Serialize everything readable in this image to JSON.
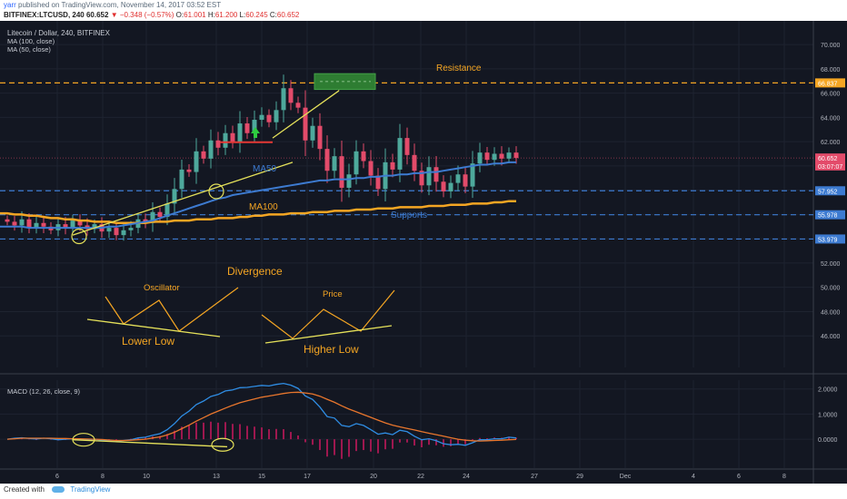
{
  "header": {
    "author": "yarr",
    "published_text": "published on TradingView.com, November 14, 2017 03:52 EST",
    "symbol": "BITFINEX:LTCUSD, 240",
    "last": "60.652",
    "change": "▼ −0.348 (−0.57%)",
    "o_label": "O:",
    "o": "61.001",
    "h_label": "H:",
    "h": "61.200",
    "l_label": "L:",
    "l": "60.245",
    "c_label": "C:",
    "c": "60.652"
  },
  "legend": {
    "title": "Litecoin / Dollar, 240, BITFINEX",
    "ma100": "MA (100, close)",
    "ma50": "MA (50, close)"
  },
  "footer": {
    "created_with": "Created with",
    "brand": "TradingView"
  },
  "colors": {
    "background": "#131722",
    "up": "#4ea99c",
    "down": "#e34b6a",
    "ma50": "#3d7bd1",
    "ma100": "#f5a623",
    "annotation": "#f5a623",
    "trend": "#e5e15a",
    "support": "#3d7bd1",
    "resistance": "#f5a623"
  },
  "annotations": {
    "resistance": "Resistance",
    "supports": "Supports",
    "ma50": "MA50",
    "ma100": "MA100",
    "divergence": "Divergence",
    "oscillator": "Oscillator",
    "lower_low": "Lower Low",
    "price": "Price",
    "higher_low": "Higher Low"
  },
  "chart_data": [
    {
      "type": "candlestick",
      "title": "Litecoin / Dollar, 240, BITFINEX",
      "price_ylim": [
        43.4,
        71.5
      ],
      "y_ticks": [
        46.0,
        48.0,
        50.0,
        52.0,
        54.0,
        56.0,
        58.0,
        60.0,
        62.0,
        64.0,
        66.0,
        68.0,
        70.0
      ],
      "y_tick_labels": [
        "46.000",
        "48.000",
        "50.000",
        "52.000",
        "54.000",
        "56.000",
        "58.000",
        "60.000",
        "62.000",
        "64.000",
        "66.000",
        "68.000",
        "70.000"
      ],
      "x_tick_labels": [
        "6",
        "8",
        "10",
        "13",
        "15",
        "17",
        "20",
        "22",
        "24",
        "27",
        "29",
        "Dec",
        "4",
        "6",
        "8"
      ],
      "price_labels": [
        {
          "value": 66.837,
          "text": "66.837",
          "color": "#f5a623"
        },
        {
          "value": 60.652,
          "text": "60.652",
          "color": "#e34b6a"
        },
        {
          "value": 60.0,
          "text": "03:07:07",
          "color": "#e34b6a"
        },
        {
          "value": 57.952,
          "text": "57.952",
          "color": "#3d7bd1"
        },
        {
          "value": 55.978,
          "text": "55.978",
          "color": "#3d7bd1"
        },
        {
          "value": 53.979,
          "text": "53.979",
          "color": "#3d7bd1"
        }
      ],
      "horizontal_levels": [
        {
          "value": 66.837,
          "style": "resistance"
        },
        {
          "value": 57.952,
          "style": "support"
        },
        {
          "value": 55.978,
          "style": "support"
        },
        {
          "value": 53.979,
          "style": "support"
        }
      ],
      "candles_close": [
        55.4,
        55.1,
        55.6,
        54.9,
        55.3,
        55.0,
        54.7,
        55.2,
        54.9,
        55.5,
        55.1,
        54.8,
        55.2,
        54.6,
        54.9,
        54.3,
        54.7,
        54.9,
        55.6,
        55.3,
        56.2,
        55.8,
        56.9,
        58.1,
        59.7,
        59.5,
        61.2,
        60.6,
        62.1,
        61.5,
        62.7,
        62.0,
        63.5,
        62.7,
        63.8,
        64.2,
        63.6,
        64.6,
        66.4,
        65.2,
        64.8,
        62.1,
        63.3,
        61.4,
        59.6,
        60.8,
        58.2,
        59.3,
        61.2,
        60.4,
        59.2,
        58.1,
        60.3,
        59.7,
        62.3,
        60.9,
        59.6,
        58.4,
        59.9,
        58.7,
        57.9,
        58.6,
        59.3,
        58.3,
        60.2,
        61.1,
        60.5,
        61.0,
        60.6,
        61.1,
        60.652
      ],
      "ma50": [
        55.0,
        55.0,
        55.0,
        54.9,
        54.9,
        54.9,
        54.9,
        54.9,
        54.9,
        54.9,
        54.9,
        54.9,
        54.9,
        54.9,
        55.0,
        55.0,
        55.1,
        55.2,
        55.3,
        55.4,
        55.5,
        55.7,
        55.9,
        56.1,
        56.3,
        56.5,
        56.7,
        56.9,
        57.1,
        57.3,
        57.4,
        57.6,
        57.7,
        57.8,
        57.9,
        58.0,
        58.1,
        58.2,
        58.3,
        58.4,
        58.5,
        58.6,
        58.7,
        58.8,
        58.8,
        58.9,
        58.9,
        58.9,
        59.0,
        59.0,
        59.1,
        59.1,
        59.2,
        59.2,
        59.3,
        59.3,
        59.4,
        59.4,
        59.5,
        59.5,
        59.6,
        59.7,
        59.8,
        59.9,
        60.0,
        60.1,
        60.1,
        60.2,
        60.2,
        60.3,
        60.3
      ],
      "ma100": [
        56.1,
        56.0,
        56.0,
        55.9,
        55.9,
        55.8,
        55.7,
        55.7,
        55.6,
        55.6,
        55.5,
        55.5,
        55.4,
        55.4,
        55.4,
        55.3,
        55.3,
        55.3,
        55.3,
        55.3,
        55.4,
        55.4,
        55.4,
        55.5,
        55.5,
        55.5,
        55.6,
        55.6,
        55.6,
        55.7,
        55.7,
        55.7,
        55.8,
        55.8,
        55.9,
        55.9,
        56.0,
        56.0,
        56.0,
        56.1,
        56.1,
        56.1,
        56.2,
        56.2,
        56.2,
        56.3,
        56.3,
        56.3,
        56.4,
        56.4,
        56.4,
        56.5,
        56.5,
        56.5,
        56.6,
        56.6,
        56.6,
        56.6,
        56.7,
        56.7,
        56.7,
        56.8,
        56.8,
        56.8,
        56.9,
        56.9,
        56.9,
        57.0,
        57.0,
        57.1,
        57.1
      ]
    },
    {
      "type": "macd",
      "title": "MACD (12, 26, close, 9)",
      "ylim": [
        -1.15,
        2.35
      ],
      "y_ticks": [
        0.0,
        1.0,
        2.0
      ],
      "y_tick_labels": [
        "0.0000",
        "1.0000",
        "2.0000"
      ],
      "macd": [
        0.0,
        0.04,
        0.06,
        0.03,
        0.01,
        0.04,
        0.02,
        -0.02,
        0.0,
        0.02,
        -0.01,
        -0.03,
        0.0,
        -0.04,
        -0.06,
        -0.08,
        -0.05,
        -0.02,
        0.05,
        0.08,
        0.16,
        0.22,
        0.38,
        0.62,
        0.92,
        1.12,
        1.38,
        1.52,
        1.7,
        1.78,
        1.92,
        1.96,
        2.05,
        2.06,
        2.1,
        2.14,
        2.12,
        2.18,
        2.22,
        2.15,
        2.02,
        1.72,
        1.58,
        1.28,
        0.9,
        0.84,
        0.55,
        0.5,
        0.62,
        0.55,
        0.38,
        0.2,
        0.25,
        0.18,
        0.36,
        0.3,
        0.12,
        -0.02,
        0.02,
        -0.06,
        -0.18,
        -0.22,
        -0.2,
        -0.24,
        -0.14,
        -0.02,
        -0.02,
        0.02,
        0.02,
        0.08,
        0.05
      ],
      "signal": [
        0.0,
        0.02,
        0.04,
        0.04,
        0.04,
        0.04,
        0.04,
        0.03,
        0.03,
        0.02,
        0.02,
        0.01,
        0.0,
        -0.01,
        -0.03,
        -0.05,
        -0.05,
        -0.04,
        -0.02,
        0.0,
        0.05,
        0.09,
        0.17,
        0.28,
        0.42,
        0.56,
        0.72,
        0.86,
        1.0,
        1.12,
        1.24,
        1.35,
        1.45,
        1.53,
        1.6,
        1.67,
        1.72,
        1.77,
        1.82,
        1.86,
        1.87,
        1.84,
        1.8,
        1.71,
        1.59,
        1.47,
        1.33,
        1.2,
        1.09,
        0.98,
        0.87,
        0.76,
        0.65,
        0.56,
        0.49,
        0.43,
        0.37,
        0.3,
        0.24,
        0.18,
        0.12,
        0.06,
        0.0,
        -0.04,
        -0.06,
        -0.07,
        -0.06,
        -0.05,
        -0.04,
        -0.02,
        -0.01
      ]
    }
  ]
}
